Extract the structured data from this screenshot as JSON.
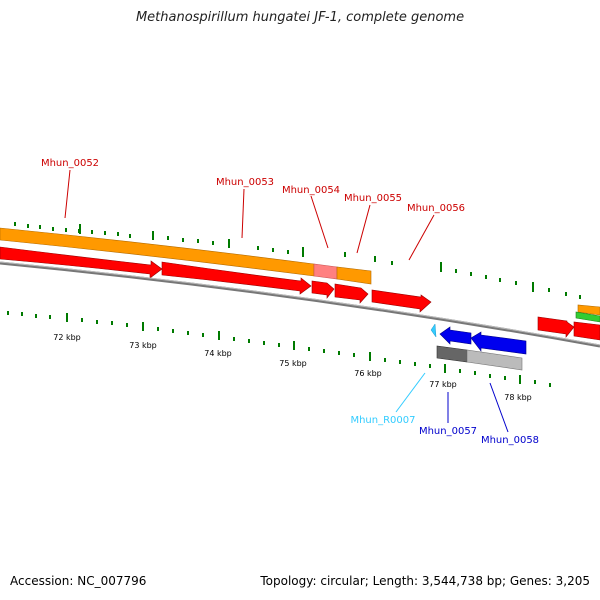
{
  "header": {
    "title": "Methanospirillum hungatei JF-1, complete genome"
  },
  "footer": {
    "accession": "Accession: NC_007796",
    "stats": "Topology: circular; Length: 3,544,738 bp; Genes: 3,205"
  },
  "ticks": [
    "72 kbp",
    "73 kbp",
    "74 kbp",
    "75 kbp",
    "76 kbp",
    "77 kbp",
    "78 kbp"
  ],
  "genes_forward": [
    "Mhun_0052",
    "Mhun_0053",
    "Mhun_0054",
    "Mhun_0055",
    "Mhun_0056"
  ],
  "genes_reverse": [
    "Mhun_R0007",
    "Mhun_0057",
    "Mhun_0058"
  ],
  "colors": {
    "cds": "#ff0000",
    "gene_orange": "#ff9900",
    "rna": "#33ccff",
    "reverse_cds": "#0000ee",
    "gray_gene": "#888888",
    "tick_green": "#007a00",
    "forward_label": "#cc0000",
    "reverse_label": "#0000cc"
  }
}
